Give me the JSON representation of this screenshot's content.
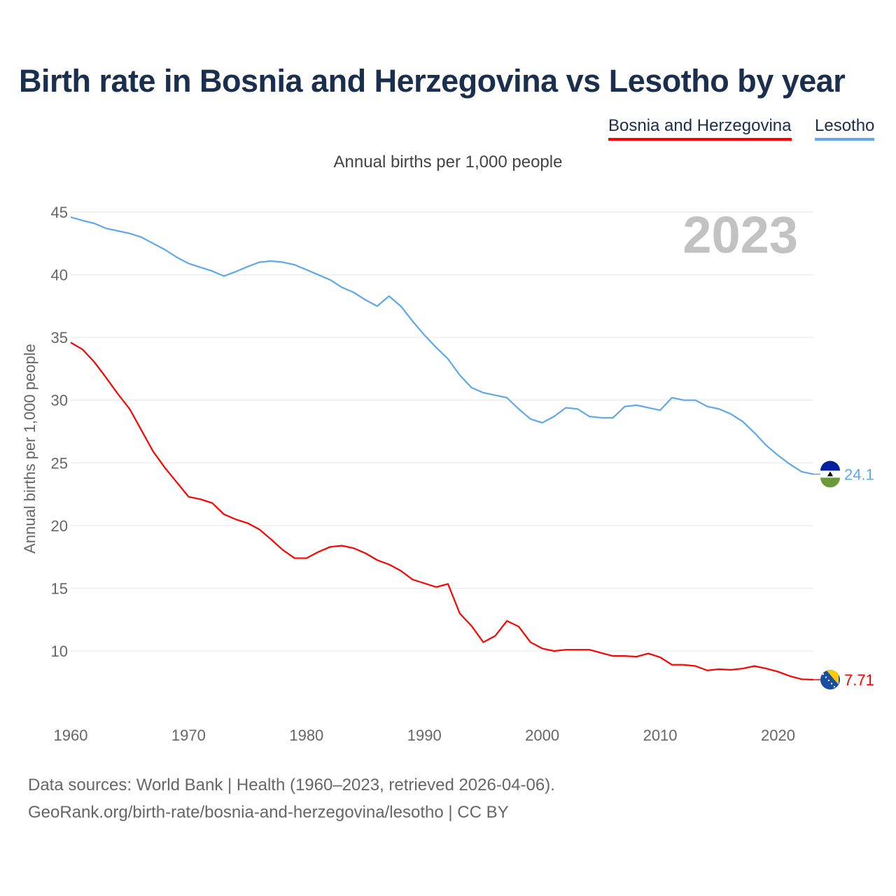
{
  "title": "Birth rate in Bosnia and Herzegovina vs Lesotho by year",
  "footer": {
    "line1": "Data sources: World Bank | Health (1960–2023, retrieved 2026-04-06).",
    "line2": "GeoRank.org/birth-rate/bosnia-and-herzegovina/lesotho | CC BY"
  },
  "chart_data": {
    "type": "line",
    "title": "Birth rate in Bosnia and Herzegovina vs Lesotho by year",
    "subtitle": "Annual births per 1,000 people",
    "ylabel": "Annual births per 1,000 people",
    "xlabel": "",
    "year_watermark": "2023",
    "xlim": [
      1960,
      2023
    ],
    "ylim": [
      6.5,
      45
    ],
    "xticks": [
      1960,
      1970,
      1980,
      1990,
      2000,
      2010,
      2020
    ],
    "yticks": [
      10,
      15,
      20,
      25,
      30,
      35,
      40,
      45
    ],
    "grid": true,
    "legend_position": "top-right",
    "x": [
      1960,
      1961,
      1962,
      1963,
      1964,
      1965,
      1966,
      1967,
      1968,
      1969,
      1970,
      1971,
      1972,
      1973,
      1974,
      1975,
      1976,
      1977,
      1978,
      1979,
      1980,
      1981,
      1982,
      1983,
      1984,
      1985,
      1986,
      1987,
      1988,
      1989,
      1990,
      1991,
      1992,
      1993,
      1994,
      1995,
      1996,
      1997,
      1998,
      1999,
      2000,
      2001,
      2002,
      2003,
      2004,
      2005,
      2006,
      2007,
      2008,
      2009,
      2010,
      2011,
      2012,
      2013,
      2014,
      2015,
      2016,
      2017,
      2018,
      2019,
      2020,
      2021,
      2022,
      2023
    ],
    "series": [
      {
        "name": "Bosnia and Herzegovina",
        "color": "#ff0000",
        "end_label": "7.71",
        "values": [
          34.6,
          34.05,
          33.05,
          31.8,
          30.5,
          29.3,
          27.6,
          25.9,
          24.6,
          23.45,
          22.3,
          22.1,
          21.8,
          20.9,
          20.5,
          20.2,
          19.7,
          18.9,
          18.05,
          17.4,
          17.4,
          17.9,
          18.3,
          18.4,
          18.2,
          17.8,
          17.25,
          16.9,
          16.4,
          15.7,
          15.4,
          15.1,
          15.35,
          13.0,
          12.0,
          10.7,
          11.2,
          12.4,
          11.95,
          10.7,
          10.2,
          10.0,
          10.1,
          10.1,
          10.1,
          9.85,
          9.6,
          9.6,
          9.55,
          9.8,
          9.5,
          8.9,
          8.9,
          8.8,
          8.45,
          8.55,
          8.5,
          8.6,
          8.8,
          8.6,
          8.35,
          8.0,
          7.75,
          7.71
        ]
      },
      {
        "name": "Lesotho",
        "color": "#5ea8ea",
        "end_label": "24.1",
        "values": [
          44.6,
          44.33,
          44.1,
          43.7,
          43.5,
          43.3,
          43.0,
          42.5,
          42.0,
          41.4,
          40.9,
          40.6,
          40.3,
          39.9,
          40.25,
          40.65,
          41.0,
          41.1,
          41.0,
          40.8,
          40.4,
          40.0,
          39.6,
          39.0,
          38.6,
          38.0,
          37.5,
          38.3,
          37.5,
          36.3,
          35.2,
          34.2,
          33.3,
          32.0,
          31.0,
          30.6,
          30.4,
          30.2,
          29.3,
          28.5,
          28.2,
          28.7,
          29.4,
          29.3,
          28.7,
          28.6,
          28.6,
          29.5,
          29.6,
          29.4,
          29.2,
          30.2,
          30.0,
          30.0,
          29.5,
          29.3,
          28.9,
          28.3,
          27.4,
          26.4,
          25.6,
          24.9,
          24.3,
          24.1
        ]
      }
    ]
  }
}
